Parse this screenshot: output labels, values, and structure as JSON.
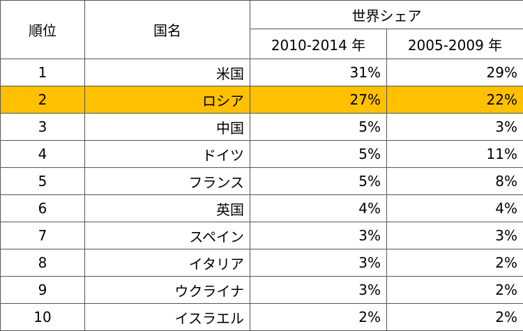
{
  "header": {
    "rank": "順位",
    "country": "国名",
    "share_group": "世界シェア",
    "period1": "2010-2014 年",
    "period2": "2005-2009 年"
  },
  "colors": {
    "highlight": "#ffc000"
  },
  "rows": [
    {
      "rank": "1",
      "country": "米国",
      "share1": "31%",
      "share2": "29%"
    },
    {
      "rank": "2",
      "country": "ロシア",
      "share1": "27%",
      "share2": "22%"
    },
    {
      "rank": "3",
      "country": "中国",
      "share1": "5%",
      "share2": "3%"
    },
    {
      "rank": "4",
      "country": "ドイツ",
      "share1": "5%",
      "share2": "11%"
    },
    {
      "rank": "5",
      "country": "フランス",
      "share1": "5%",
      "share2": "8%"
    },
    {
      "rank": "6",
      "country": "英国",
      "share1": "4%",
      "share2": "4%"
    },
    {
      "rank": "7",
      "country": "スペイン",
      "share1": "3%",
      "share2": "3%"
    },
    {
      "rank": "8",
      "country": "イタリア",
      "share1": "3%",
      "share2": "2%"
    },
    {
      "rank": "9",
      "country": "ウクライナ",
      "share1": "3%",
      "share2": "2%"
    },
    {
      "rank": "10",
      "country": "イスラエル",
      "share1": "2%",
      "share2": "2%"
    }
  ]
}
